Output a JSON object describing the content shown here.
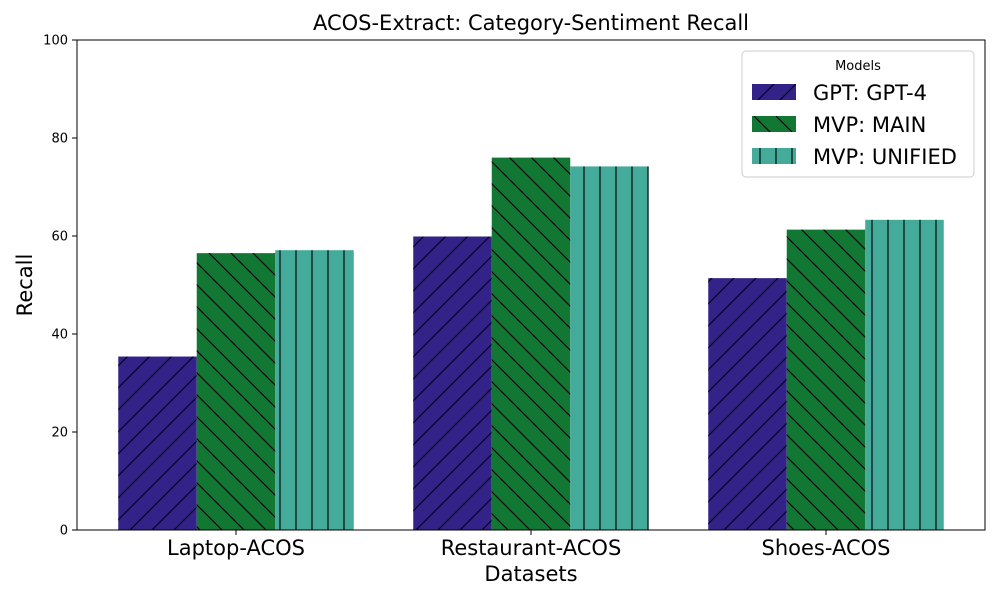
{
  "chart_data": {
    "type": "bar",
    "title": "ACOS-Extract: Category-Sentiment Recall",
    "xlabel": "Datasets",
    "ylabel": "Recall",
    "ylim": [
      0,
      100
    ],
    "yticks": [
      "0",
      "20",
      "40",
      "60",
      "80",
      "100"
    ],
    "categories": [
      "Laptop-ACOS",
      "Restaurant-ACOS",
      "Shoes-ACOS"
    ],
    "series": [
      {
        "name": "GPT: GPT-4",
        "color": "#332288",
        "hatch": "forward-diagonal",
        "values": [
          35.4,
          59.9,
          51.4
        ]
      },
      {
        "name": "MVP: MAIN",
        "color": "#117733",
        "hatch": "back-diagonal",
        "values": [
          56.5,
          76.0,
          61.3
        ]
      },
      {
        "name": "MVP: UNIFIED",
        "color": "#44AA99",
        "hatch": "vertical",
        "values": [
          57.1,
          74.2,
          63.3
        ]
      }
    ],
    "legend": {
      "title": "Models",
      "position": "top-right"
    },
    "grid": false
  }
}
